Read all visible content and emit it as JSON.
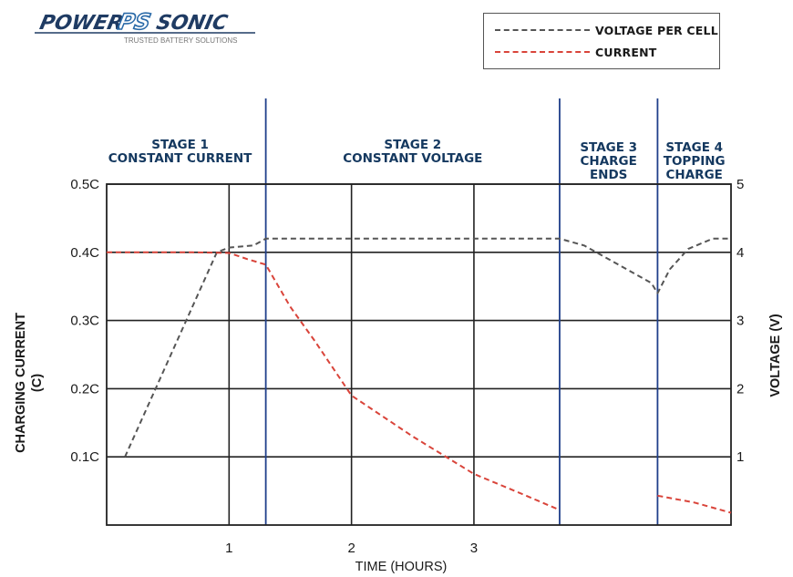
{
  "logo": {
    "word_left": "POWER",
    "word_mid": "PS",
    "word_right": "SONIC",
    "tagline": "TRUSTED BATTERY SOLUTIONS",
    "colors": {
      "dark": "#1f3b63",
      "blue": "#2a6aa8"
    }
  },
  "legend": {
    "items": [
      {
        "label": "VOLTAGE PER CELL",
        "color": "#555555",
        "style": "dashed"
      },
      {
        "label": "CURRENT",
        "color": "#d9443a",
        "style": "dashed"
      }
    ]
  },
  "chart_data": {
    "type": "line",
    "xlabel": "TIME (HOURS)",
    "ylabel_left": [
      "CHARGING CURRENT",
      "(C)"
    ],
    "ylabel_right": "VOLTAGE (V)",
    "xlim": [
      0,
      5.1
    ],
    "x_ticks": [
      {
        "x": 1,
        "label": "1"
      },
      {
        "x": 2,
        "label": "2"
      },
      {
        "x": 3,
        "label": "3"
      }
    ],
    "ylim_left": [
      0,
      0.5
    ],
    "left_ticks": [
      {
        "v": 0.1,
        "label": "0.1C"
      },
      {
        "v": 0.2,
        "label": "0.2C"
      },
      {
        "v": 0.3,
        "label": "0.3C"
      },
      {
        "v": 0.4,
        "label": "0.4C"
      },
      {
        "v": 0.5,
        "label": "0.5C"
      }
    ],
    "ylim_right": [
      0,
      5
    ],
    "right_ticks": [
      {
        "v": 1,
        "label": "1"
      },
      {
        "v": 2,
        "label": "2"
      },
      {
        "v": 3,
        "label": "3"
      },
      {
        "v": 4,
        "label": "4"
      },
      {
        "v": 5,
        "label": "5"
      }
    ],
    "stage_boundaries": [
      1.3,
      3.7,
      4.5
    ],
    "stages": [
      {
        "lines": [
          "STAGE 1",
          "CONSTANT CURRENT"
        ],
        "x_center": 0.6
      },
      {
        "lines": [
          "STAGE 2",
          "CONSTANT VOLTAGE"
        ],
        "x_center": 2.5
      },
      {
        "lines": [
          "STAGE 3",
          "CHARGE",
          "ENDS"
        ],
        "x_center": 4.1
      },
      {
        "lines": [
          "STAGE 4",
          "TOPPING",
          "CHARGE"
        ],
        "x_center": 4.8
      }
    ],
    "series": [
      {
        "name": "VOLTAGE PER CELL",
        "axis": "right",
        "color": "#555555",
        "segments": [
          [
            [
              0.15,
              1.0
            ],
            [
              0.9,
              4.0
            ],
            [
              1.0,
              4.07
            ],
            [
              1.2,
              4.1
            ],
            [
              1.3,
              4.2
            ],
            [
              1.5,
              4.2
            ],
            [
              3.7,
              4.2
            ],
            [
              3.9,
              4.1
            ],
            [
              4.2,
              3.8
            ],
            [
              4.45,
              3.55
            ],
            [
              4.5,
              3.4
            ],
            [
              4.6,
              3.75
            ],
            [
              4.75,
              4.05
            ],
            [
              4.95,
              4.2
            ],
            [
              5.1,
              4.2
            ]
          ]
        ]
      },
      {
        "name": "CURRENT",
        "axis": "left",
        "color": "#d9443a",
        "segments": [
          [
            [
              0,
              0.4
            ],
            [
              0.7,
              0.4
            ],
            [
              1.0,
              0.399
            ],
            [
              1.15,
              0.39
            ],
            [
              1.3,
              0.382
            ],
            [
              1.5,
              0.32
            ],
            [
              1.7,
              0.27
            ],
            [
              2.0,
              0.19
            ],
            [
              2.5,
              0.13
            ],
            [
              3.0,
              0.075
            ],
            [
              3.4,
              0.045
            ],
            [
              3.7,
              0.022
            ]
          ],
          [
            [
              4.5,
              0.043
            ],
            [
              4.8,
              0.033
            ],
            [
              5.1,
              0.018
            ]
          ]
        ]
      }
    ]
  }
}
